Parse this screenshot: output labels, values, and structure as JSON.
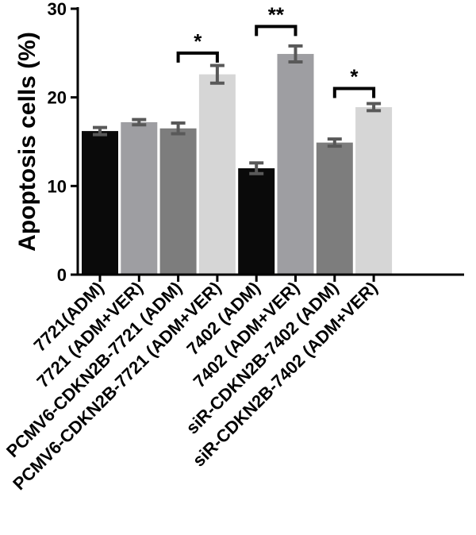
{
  "chart_data": {
    "type": "bar",
    "categories": [
      "7721(ADM)",
      "7721 (ADM+VER)",
      "PCMV6-CDKN2B-7721 (ADM)",
      "PCMV6-CDKN2B-7721 (ADM+VER)",
      "7402 (ADM)",
      "7402 (ADM+VER)",
      "siR-CDKN2B-7402 (ADM)",
      "siR-CDKN2B-7402 (ADM+VER)"
    ],
    "values": [
      16.2,
      17.2,
      16.5,
      22.6,
      12.0,
      24.9,
      14.9,
      18.9
    ],
    "errors": [
      0.4,
      0.3,
      0.6,
      1.0,
      0.6,
      0.9,
      0.4,
      0.4
    ],
    "bar_colors": [
      "#0a0a0a",
      "#9e9ea2",
      "#7d7d7d",
      "#d6d6d6",
      "#0a0a0a",
      "#9e9ea2",
      "#7d7d7d",
      "#d6d6d6"
    ],
    "error_color": "#595959",
    "title": "",
    "xlabel": "",
    "ylabel": "Apoptosis cells (%)",
    "ylim": [
      0,
      30
    ],
    "yticks": [
      0,
      10,
      20,
      30
    ],
    "grid": false,
    "significance": [
      {
        "from": 2,
        "to": 3,
        "label": "*",
        "y": 25
      },
      {
        "from": 4,
        "to": 5,
        "label": "**",
        "y": 28
      },
      {
        "from": 6,
        "to": 7,
        "label": "*",
        "y": 21
      }
    ]
  }
}
